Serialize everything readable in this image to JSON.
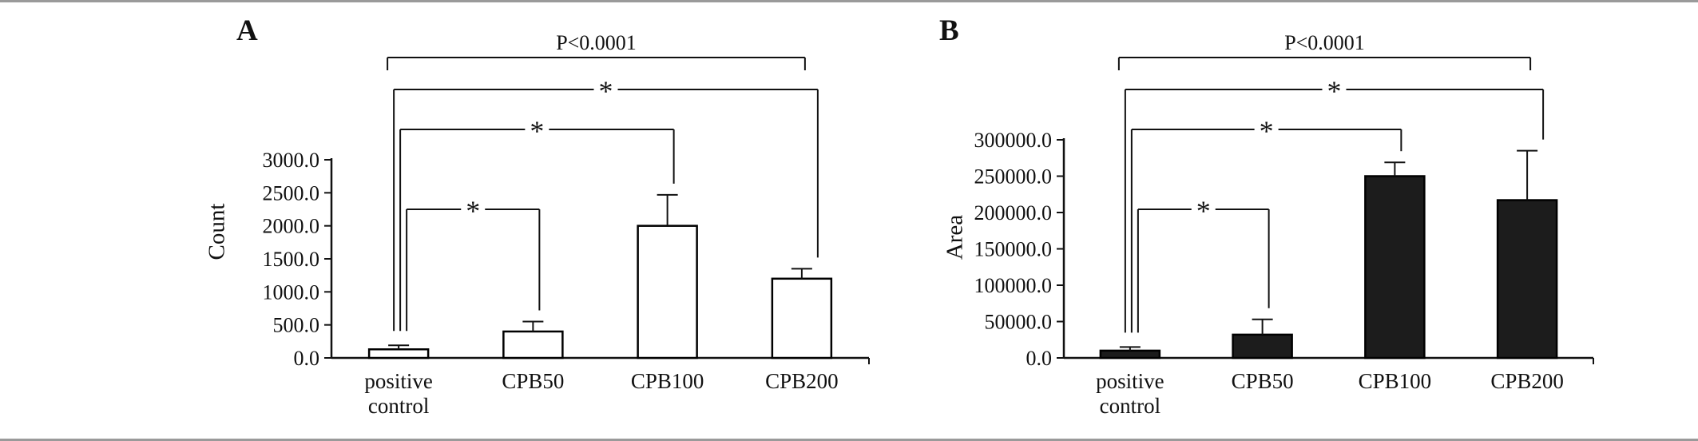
{
  "figure": {
    "background": "#ffffff",
    "border_color": "#9a9a9a",
    "axis_color": "#111111"
  },
  "chart_data": [
    {
      "type": "bar",
      "panel_label": "A",
      "title": "",
      "xlabel": "",
      "ylabel": "Count",
      "categories": [
        "positive\ncontrol",
        "CPB50",
        "CPB100",
        "CPB200"
      ],
      "values": [
        130,
        400,
        2000,
        1200
      ],
      "errors": [
        60,
        150,
        470,
        150
      ],
      "ylim": [
        0,
        3000
      ],
      "ytick_step": 500,
      "ytick_labels": [
        "0.0",
        "500.0",
        "1000.0",
        "1500.0",
        "2000.0",
        "2500.0",
        "3000.0"
      ],
      "bar_fill": "#ffffff",
      "bar_stroke": "#000000",
      "grid": false,
      "legend": null,
      "annotations": [
        {
          "label": "P<0.0001",
          "from_index": 0,
          "to_index": 3
        },
        {
          "label": "*",
          "from_index": 0,
          "to_index": 3
        },
        {
          "label": "*",
          "from_index": 0,
          "to_index": 2
        },
        {
          "label": "*",
          "from_index": 0,
          "to_index": 1
        }
      ]
    },
    {
      "type": "bar",
      "panel_label": "B",
      "title": "",
      "xlabel": "",
      "ylabel": "Area",
      "categories": [
        "positive\ncontrol",
        "CPB50",
        "CPB100",
        "CPB200"
      ],
      "values": [
        10000,
        32000,
        250000,
        217000
      ],
      "errors": [
        5000,
        21000,
        19000,
        68000
      ],
      "ylim": [
        0,
        300000
      ],
      "ytick_step": 50000,
      "ytick_labels": [
        "0.0",
        "50000.0",
        "100000.0",
        "150000.0",
        "200000.0",
        "250000.0",
        "300000.0"
      ],
      "bar_fill": "#1c1c1c",
      "bar_stroke": "#000000",
      "grid": false,
      "legend": null,
      "annotations": [
        {
          "label": "P<0.0001",
          "from_index": 0,
          "to_index": 3
        },
        {
          "label": "*",
          "from_index": 0,
          "to_index": 3
        },
        {
          "label": "*",
          "from_index": 0,
          "to_index": 2
        },
        {
          "label": "*",
          "from_index": 0,
          "to_index": 1
        }
      ]
    }
  ]
}
